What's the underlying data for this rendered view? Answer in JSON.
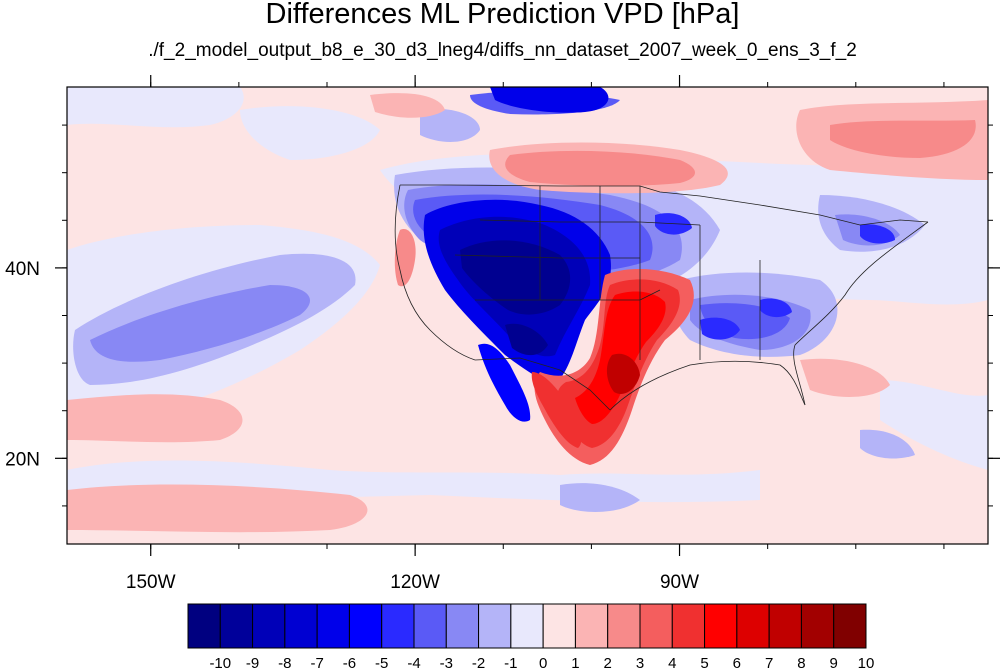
{
  "title": "Differences ML Prediction VPD [hPa]",
  "subtitle": "./f_2_model_output_b8_e_30_d3_lneg4/diffs_nn_dataset_2007_week_0_ens_3_f_2",
  "map": {
    "x_ticks": [
      {
        "value": -150,
        "label": "150W"
      },
      {
        "value": -120,
        "label": "120W"
      },
      {
        "value": -90,
        "label": "90W"
      }
    ],
    "y_ticks": [
      {
        "value": 40,
        "label": "40N"
      },
      {
        "value": 20,
        "label": "20N"
      }
    ],
    "lon_range": [
      -159.5,
      -55
    ],
    "lat_range": [
      11,
      59
    ]
  },
  "colorbar": {
    "labels": [
      "-10",
      "-9",
      "-8",
      "-7",
      "-6",
      "-5",
      "-4",
      "-3",
      "-2",
      "-1",
      "0",
      "1",
      "2",
      "3",
      "4",
      "5",
      "6",
      "7",
      "8",
      "9",
      "10"
    ],
    "colors": [
      "#000080",
      "#00009a",
      "#0000b8",
      "#0000d2",
      "#0000ea",
      "#0000ff",
      "#2a2aff",
      "#5a5af6",
      "#8888f4",
      "#b4b4f8",
      "#e8e8fc",
      "#fde4e4",
      "#fbb4b4",
      "#f78a8a",
      "#f45e5e",
      "#f03030",
      "#ff0000",
      "#dd0000",
      "#c00000",
      "#a20000",
      "#800000"
    ]
  }
}
